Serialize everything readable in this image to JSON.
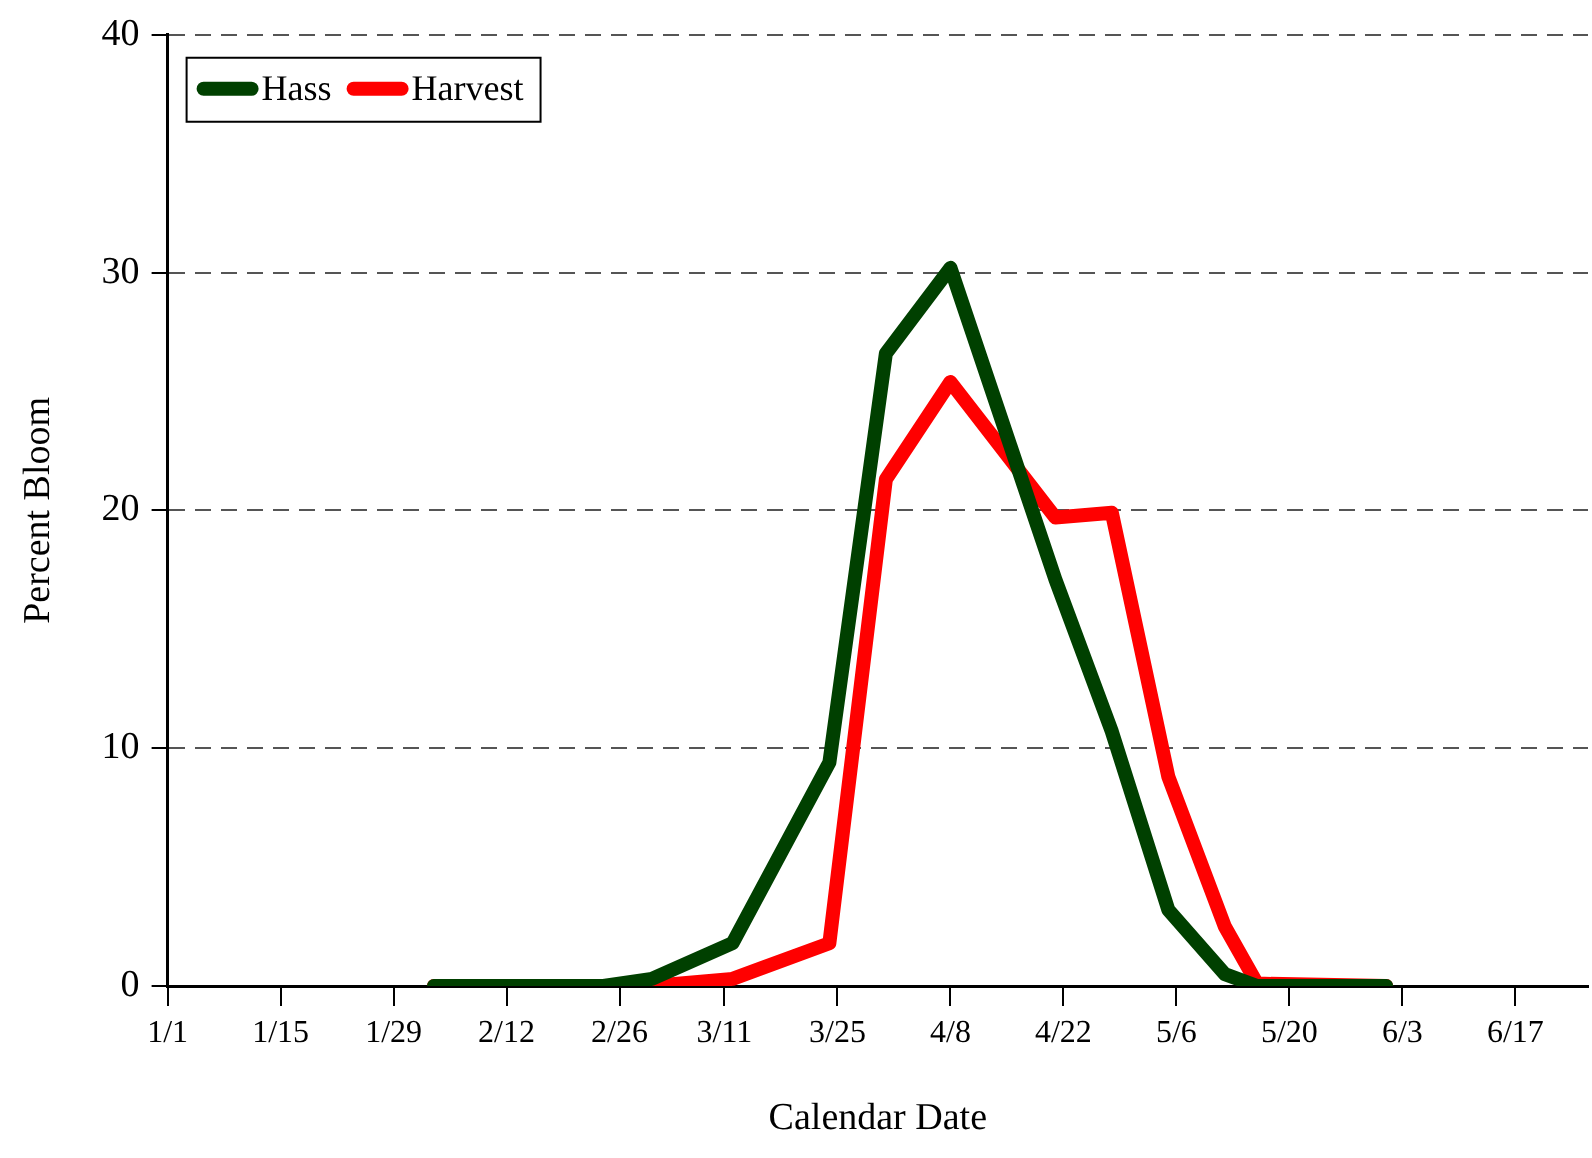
{
  "chart_data": {
    "type": "line",
    "xlabel": "Calendar Date",
    "ylabel": "Percent Bloom",
    "xlim": [
      "--01-01",
      "--06-26"
    ],
    "ylim": [
      0,
      40
    ],
    "yticks": [
      0,
      10,
      20,
      30,
      40
    ],
    "xticks": [
      {
        "value": "--01-01",
        "label": "1/1"
      },
      {
        "value": "--01-15",
        "label": "1/15"
      },
      {
        "value": "--01-29",
        "label": "1/29"
      },
      {
        "value": "--02-12",
        "label": "2/12"
      },
      {
        "value": "--02-26",
        "label": "2/26"
      },
      {
        "value": "--03-11",
        "label": "3/11"
      },
      {
        "value": "--03-25",
        "label": "3/25"
      },
      {
        "value": "--04-08",
        "label": "4/8"
      },
      {
        "value": "--04-22",
        "label": "4/22"
      },
      {
        "value": "--05-06",
        "label": "5/6"
      },
      {
        "value": "--05-20",
        "label": "5/20"
      },
      {
        "value": "--06-03",
        "label": "6/3"
      },
      {
        "value": "--06-17",
        "label": "6/17"
      }
    ],
    "grid": "y",
    "legend": "top left",
    "marker": "none",
    "line_style": "solid",
    "series": [
      {
        "name": "Hass",
        "color": "#004000",
        "x": [
          "--02-03",
          "--02-24",
          "--03-02",
          "--03-12",
          "--03-24",
          "--03-31",
          "--04-08",
          "--04-21",
          "--04-28",
          "--05-05",
          "--05-12",
          "--05-16",
          "--06-01"
        ],
        "values": [
          0,
          0,
          0.3,
          1.8,
          9.4,
          26.6,
          30.2,
          17.1,
          10.7,
          3.2,
          0.5,
          0,
          0
        ]
      },
      {
        "name": "Harvest",
        "color": "#ff0000",
        "x": [
          "--02-03",
          "--02-24",
          "--03-02",
          "--03-12",
          "--03-24",
          "--03-31",
          "--04-08",
          "--04-21",
          "--04-28",
          "--05-05",
          "--05-12",
          "--05-16",
          "--06-01"
        ],
        "values": [
          0,
          0,
          0,
          0.3,
          1.8,
          21.3,
          25.4,
          19.7,
          19.9,
          8.8,
          2.5,
          0.1,
          0
        ]
      }
    ]
  }
}
